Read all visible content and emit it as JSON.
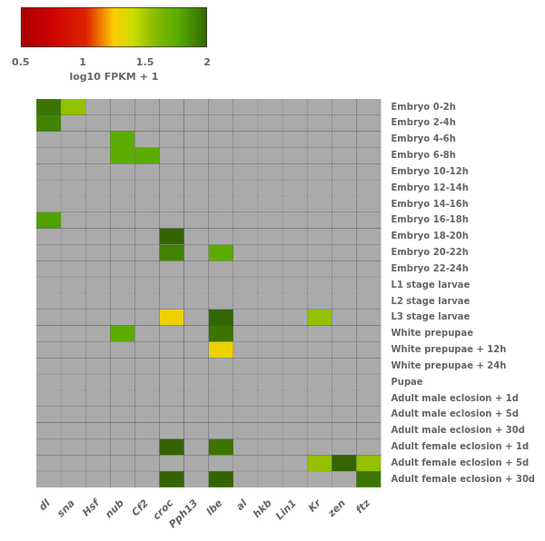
{
  "chart_data": {
    "type": "heatmap",
    "categories": [
      "dl",
      "sna",
      "Hsf",
      "nub",
      "Cf2",
      "croc",
      "Pph13",
      "lbe",
      "al",
      "hkb",
      "Lin1",
      "Kr",
      "zen",
      "ftz"
    ],
    "rows": [
      "Embryo 0-2h",
      "Embryo 2-4h",
      "Embryo 4-6h",
      "Embryo 6-8h",
      "Embryo 10-12h",
      "Embryo 12-14h",
      "Embryo 14-16h",
      "Embryo 16-18h",
      "Embryo 18-20h",
      "Embryo 20-22h",
      "Embryo 22-24h",
      "L1 stage larvae",
      "L2 stage larvae",
      "L3 stage larvae",
      "White prepupae",
      "White prepupae + 12h",
      "White prepupae + 24h",
      "Pupae",
      "Adult male eclosion + 1d",
      "Adult male eclosion + 5d",
      "Adult male eclosion + 30d",
      "Adult female eclosion + 1d",
      "Adult female eclosion + 5d",
      "Adult female eclosion + 30d"
    ],
    "values": [
      [
        1.95,
        1.55,
        0.5,
        0.5,
        0.5,
        0.5,
        0.5,
        0.5,
        0.5,
        0.5,
        0.5,
        0.5,
        0.5,
        0.5
      ],
      [
        1.9,
        0.5,
        0.5,
        0.5,
        0.5,
        0.5,
        0.5,
        0.5,
        0.5,
        0.5,
        0.5,
        0.5,
        0.5,
        0.5
      ],
      [
        0.5,
        0.5,
        0.5,
        1.75,
        0.5,
        0.5,
        0.5,
        0.5,
        0.5,
        0.5,
        0.5,
        0.5,
        0.5,
        0.5
      ],
      [
        0.5,
        0.5,
        0.5,
        1.75,
        1.75,
        0.5,
        0.5,
        0.5,
        0.5,
        0.5,
        0.5,
        0.5,
        0.5,
        0.5
      ],
      [
        0.5,
        0.5,
        0.5,
        0.5,
        0.5,
        0.5,
        0.5,
        0.5,
        0.5,
        0.5,
        0.5,
        0.5,
        0.5,
        0.5
      ],
      [
        0.5,
        0.5,
        0.5,
        0.5,
        0.5,
        0.5,
        0.5,
        0.5,
        0.5,
        0.5,
        0.5,
        0.5,
        0.5,
        0.5
      ],
      [
        0.5,
        0.5,
        0.5,
        0.5,
        0.5,
        0.5,
        0.5,
        0.5,
        0.5,
        0.5,
        0.5,
        0.5,
        0.5,
        0.5
      ],
      [
        1.8,
        0.5,
        0.5,
        0.5,
        0.5,
        0.5,
        0.5,
        0.5,
        0.5,
        0.5,
        0.5,
        0.5,
        0.5,
        0.5
      ],
      [
        0.5,
        0.5,
        0.5,
        0.5,
        0.5,
        2.0,
        0.5,
        0.5,
        0.5,
        0.5,
        0.5,
        0.5,
        0.5,
        0.5
      ],
      [
        0.5,
        0.5,
        0.5,
        0.5,
        0.5,
        1.9,
        0.5,
        1.75,
        0.5,
        0.5,
        0.5,
        0.5,
        0.5,
        0.5
      ],
      [
        0.5,
        0.5,
        0.5,
        0.5,
        0.5,
        0.5,
        0.5,
        0.5,
        0.5,
        0.5,
        0.5,
        0.5,
        0.5,
        0.5
      ],
      [
        0.5,
        0.5,
        0.5,
        0.5,
        0.5,
        0.5,
        0.5,
        0.5,
        0.5,
        0.5,
        0.5,
        0.5,
        0.5,
        0.5
      ],
      [
        0.5,
        0.5,
        0.5,
        0.5,
        0.5,
        0.5,
        0.5,
        0.5,
        0.5,
        0.5,
        0.5,
        0.5,
        0.5,
        0.5
      ],
      [
        0.5,
        0.5,
        0.5,
        0.5,
        0.5,
        1.3,
        0.5,
        2.0,
        0.5,
        0.5,
        0.5,
        1.55,
        0.5,
        0.5
      ],
      [
        0.5,
        0.5,
        0.5,
        1.75,
        0.5,
        0.5,
        0.5,
        1.95,
        0.5,
        0.5,
        0.5,
        0.5,
        0.5,
        0.5
      ],
      [
        0.5,
        0.5,
        0.5,
        0.5,
        0.5,
        0.5,
        0.5,
        1.3,
        0.5,
        0.5,
        0.5,
        0.5,
        0.5,
        0.5
      ],
      [
        0.5,
        0.5,
        0.5,
        0.5,
        0.5,
        0.5,
        0.5,
        0.5,
        0.5,
        0.5,
        0.5,
        0.5,
        0.5,
        0.5
      ],
      [
        0.5,
        0.5,
        0.5,
        0.5,
        0.5,
        0.5,
        0.5,
        0.5,
        0.5,
        0.5,
        0.5,
        0.5,
        0.5,
        0.5
      ],
      [
        0.5,
        0.5,
        0.5,
        0.5,
        0.5,
        0.5,
        0.5,
        0.5,
        0.5,
        0.5,
        0.5,
        0.5,
        0.5,
        0.5
      ],
      [
        0.5,
        0.5,
        0.5,
        0.5,
        0.5,
        0.5,
        0.5,
        0.5,
        0.5,
        0.5,
        0.5,
        0.5,
        0.5,
        0.5
      ],
      [
        0.5,
        0.5,
        0.5,
        0.5,
        0.5,
        0.5,
        0.5,
        0.5,
        0.5,
        0.5,
        0.5,
        0.5,
        0.5,
        0.5
      ],
      [
        0.5,
        0.5,
        0.5,
        0.5,
        0.5,
        2.0,
        0.5,
        1.95,
        0.5,
        0.5,
        0.5,
        0.5,
        0.5,
        0.5
      ],
      [
        0.5,
        0.5,
        0.5,
        0.5,
        0.5,
        0.5,
        0.5,
        0.5,
        0.5,
        0.5,
        0.5,
        1.55,
        2.0,
        1.55
      ],
      [
        0.5,
        0.5,
        0.5,
        0.5,
        0.5,
        2.0,
        0.5,
        2.0,
        0.5,
        0.5,
        0.5,
        0.5,
        0.5,
        1.95
      ]
    ],
    "colorbar_label": "log10 FPKM + 1",
    "colorbar_lim": [
      0.5,
      2.0
    ],
    "colorbar_ticks": [
      0.5,
      1,
      1.5,
      2
    ],
    "colors": [
      "#aa0000",
      "#cc0000",
      "#dd2200",
      "#ffcc00",
      "#ccdd00",
      "#88bb00",
      "#55aa00",
      "#336600"
    ],
    "color": "#aaaaaa",
    "threshold": 0.6,
    "grid": false
  }
}
